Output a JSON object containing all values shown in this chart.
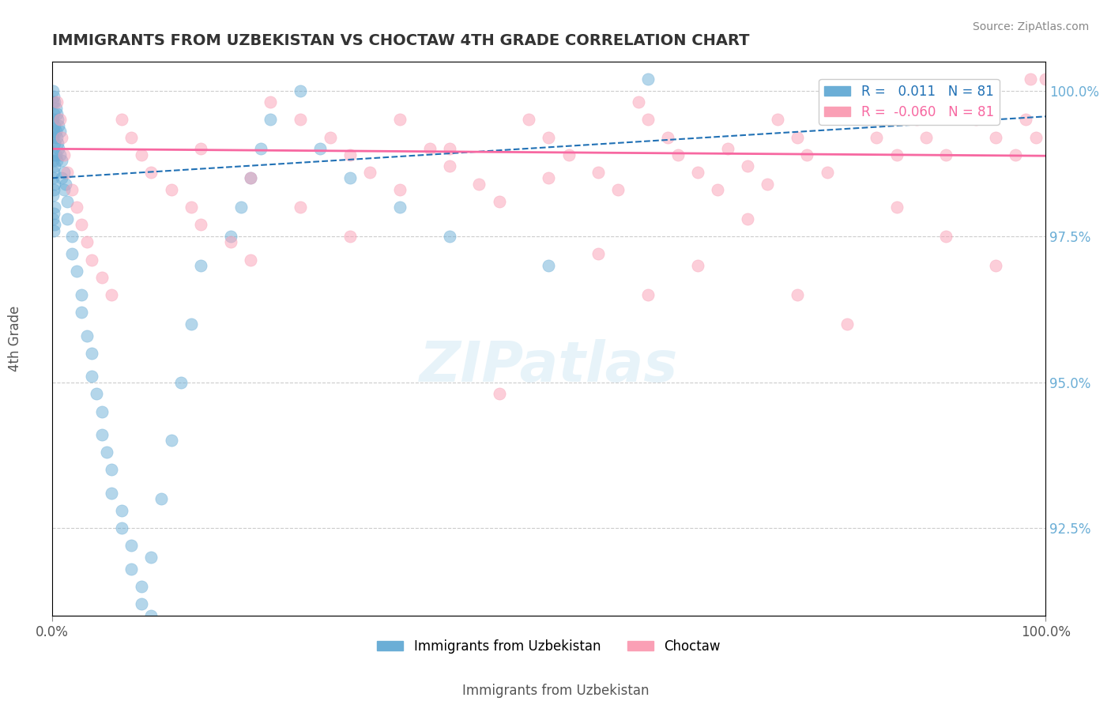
{
  "title": "IMMIGRANTS FROM UZBEKISTAN VS CHOCTAW 4TH GRADE CORRELATION CHART",
  "source": "Source: ZipAtlas.com",
  "xlabel_bottom_left": "0.0%",
  "xlabel_bottom_right": "100.0%",
  "ylabel": "4th Grade",
  "xlabel": "Immigrants from Uzbekistan",
  "legend_label1": "Immigrants from Uzbekistan",
  "legend_label2": "Choctaw",
  "R1": 0.011,
  "R2": -0.06,
  "N1": 81,
  "N2": 81,
  "scatter1_color": "#6baed6",
  "scatter2_color": "#fa9fb5",
  "line1_color": "#2171b5",
  "line2_color": "#f768a1",
  "bg_color": "#ffffff",
  "watermark": "ZIPatlas",
  "xmin": 0.0,
  "xmax": 100.0,
  "ymin": 91.0,
  "ymax": 100.5,
  "yticks": [
    92.5,
    95.0,
    97.5,
    100.0
  ],
  "grid_color": "#cccccc",
  "title_color": "#333333",
  "axis_color": "#888888",
  "right_label_color": "#6baed6",
  "scatter1_x": [
    0.1,
    0.1,
    0.1,
    0.1,
    0.1,
    0.1,
    0.1,
    0.1,
    0.2,
    0.2,
    0.2,
    0.2,
    0.2,
    0.2,
    0.2,
    0.2,
    0.3,
    0.3,
    0.3,
    0.3,
    0.3,
    0.3,
    0.3,
    0.4,
    0.4,
    0.4,
    0.5,
    0.5,
    0.5,
    0.6,
    0.6,
    0.7,
    0.7,
    0.8,
    0.8,
    1.0,
    1.0,
    1.2,
    1.2,
    1.4,
    1.5,
    1.5,
    2.0,
    2.0,
    2.5,
    3.0,
    3.0,
    3.5,
    4.0,
    4.0,
    4.5,
    5.0,
    5.0,
    5.5,
    6.0,
    6.0,
    7.0,
    7.0,
    8.0,
    8.0,
    9.0,
    9.0,
    10.0,
    10.0,
    11.0,
    12.0,
    13.0,
    14.0,
    15.0,
    18.0,
    19.0,
    20.0,
    21.0,
    22.0,
    25.0,
    27.0,
    30.0,
    35.0,
    40.0,
    50.0,
    60.0
  ],
  "scatter1_y": [
    100.0,
    99.8,
    99.5,
    99.2,
    98.8,
    98.5,
    98.2,
    97.8,
    99.9,
    99.6,
    99.3,
    98.9,
    98.6,
    98.3,
    97.9,
    97.6,
    99.8,
    99.4,
    99.1,
    98.7,
    98.4,
    98.0,
    97.7,
    99.7,
    99.3,
    98.9,
    99.6,
    99.2,
    98.8,
    99.5,
    99.1,
    99.4,
    99.0,
    99.3,
    98.9,
    98.8,
    98.5,
    98.6,
    98.3,
    98.4,
    98.1,
    97.8,
    97.5,
    97.2,
    96.9,
    96.5,
    96.2,
    95.8,
    95.5,
    95.1,
    94.8,
    94.5,
    94.1,
    93.8,
    93.5,
    93.1,
    92.8,
    92.5,
    92.2,
    91.8,
    91.5,
    91.2,
    91.0,
    92.0,
    93.0,
    94.0,
    95.0,
    96.0,
    97.0,
    97.5,
    98.0,
    98.5,
    99.0,
    99.5,
    100.0,
    99.0,
    98.5,
    98.0,
    97.5,
    97.0,
    100.2
  ],
  "scatter2_x": [
    0.5,
    0.8,
    1.0,
    1.2,
    1.5,
    2.0,
    2.5,
    3.0,
    3.5,
    4.0,
    5.0,
    6.0,
    7.0,
    8.0,
    9.0,
    10.0,
    12.0,
    14.0,
    15.0,
    18.0,
    20.0,
    22.0,
    25.0,
    28.0,
    30.0,
    32.0,
    35.0,
    38.0,
    40.0,
    43.0,
    45.0,
    48.0,
    50.0,
    52.0,
    55.0,
    57.0,
    59.0,
    60.0,
    62.0,
    63.0,
    65.0,
    67.0,
    68.0,
    70.0,
    72.0,
    73.0,
    75.0,
    76.0,
    78.0,
    80.0,
    82.0,
    83.0,
    85.0,
    87.0,
    88.0,
    90.0,
    92.0,
    93.0,
    95.0,
    97.0,
    98.0,
    99.0,
    100.0,
    55.0,
    30.0,
    45.0,
    20.0,
    60.0,
    70.0,
    80.0,
    15.0,
    25.0,
    35.0,
    40.0,
    50.0,
    65.0,
    75.0,
    85.0,
    90.0,
    95.0,
    98.5
  ],
  "scatter2_y": [
    99.8,
    99.5,
    99.2,
    98.9,
    98.6,
    98.3,
    98.0,
    97.7,
    97.4,
    97.1,
    96.8,
    96.5,
    99.5,
    99.2,
    98.9,
    98.6,
    98.3,
    98.0,
    97.7,
    97.4,
    97.1,
    99.8,
    99.5,
    99.2,
    98.9,
    98.6,
    98.3,
    99.0,
    98.7,
    98.4,
    98.1,
    99.5,
    99.2,
    98.9,
    98.6,
    98.3,
    99.8,
    99.5,
    99.2,
    98.9,
    98.6,
    98.3,
    99.0,
    98.7,
    98.4,
    99.5,
    99.2,
    98.9,
    98.6,
    99.8,
    99.5,
    99.2,
    98.9,
    99.5,
    99.2,
    98.9,
    99.8,
    99.5,
    99.2,
    98.9,
    99.5,
    99.2,
    100.2,
    97.2,
    97.5,
    94.8,
    98.5,
    96.5,
    97.8,
    96.0,
    99.0,
    98.0,
    99.5,
    99.0,
    98.5,
    97.0,
    96.5,
    98.0,
    97.5,
    97.0,
    100.2
  ]
}
